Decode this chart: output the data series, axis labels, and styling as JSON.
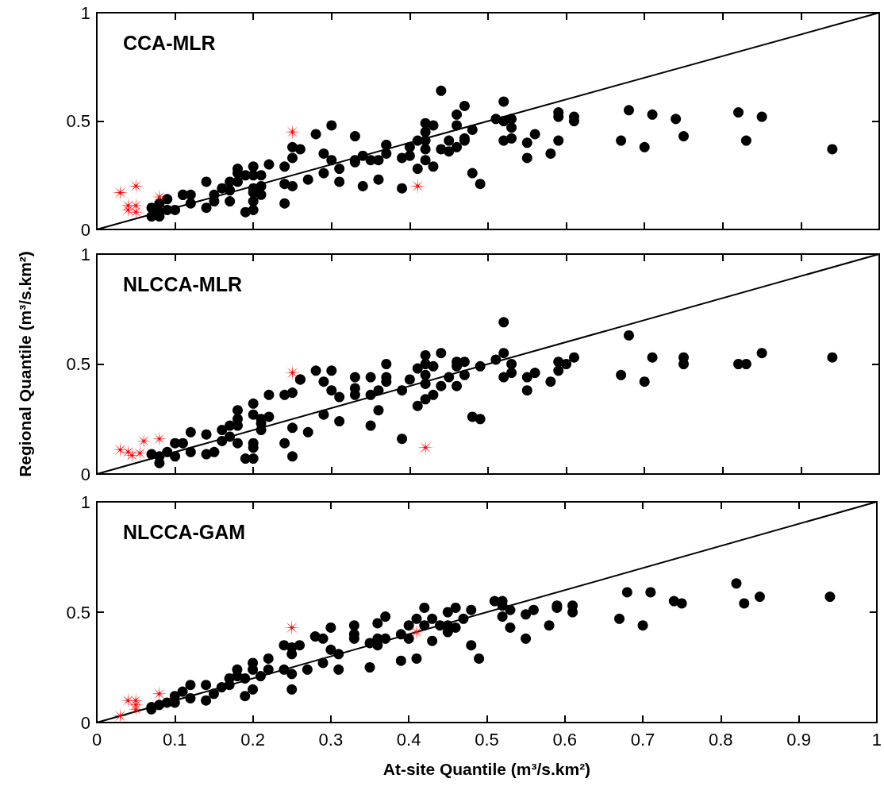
{
  "chart_data": [
    {
      "type": "scatter",
      "title": "CCA-MLR",
      "xlim": [
        0,
        1
      ],
      "ylim": [
        0,
        1
      ],
      "xticks": [
        0,
        0.1,
        0.2,
        0.3,
        0.4,
        0.5,
        0.6,
        0.7,
        0.8,
        0.9,
        1
      ],
      "yticks": [
        0,
        0.5,
        1
      ],
      "tick_labels": "y",
      "series": [
        {
          "type": "scatter",
          "color": "#000000",
          "marker": "circle",
          "x": [
            0.44,
            0.47,
            0.46,
            0.46,
            0.48,
            0.42,
            0.42,
            0.43,
            0.41,
            0.42,
            0.42,
            0.42,
            0.43,
            0.41,
            0.45,
            0.44,
            0.45,
            0.46,
            0.47,
            0.47,
            0.48,
            0.49,
            0.4,
            0.39,
            0.4,
            0.39,
            0.37,
            0.37,
            0.37,
            0.34,
            0.35,
            0.36,
            0.36,
            0.34,
            0.33,
            0.33,
            0.33,
            0.31,
            0.31,
            0.29,
            0.3,
            0.29,
            0.3,
            0.28,
            0.27,
            0.25,
            0.26,
            0.25,
            0.24,
            0.24,
            0.25,
            0.24,
            0.22,
            0.21,
            0.21,
            0.21,
            0.2,
            0.2,
            0.2,
            0.2,
            0.19,
            0.2,
            0.2,
            0.18,
            0.18,
            0.18,
            0.17,
            0.17,
            0.19,
            0.17,
            0.16,
            0.15,
            0.15,
            0.14,
            0.14,
            0.12,
            0.11,
            0.11,
            0.12,
            0.1,
            0.09,
            0.09,
            0.08,
            0.08,
            0.07,
            0.08,
            0.07,
            0.52,
            0.51,
            0.52,
            0.53,
            0.53,
            0.52,
            0.53,
            0.55,
            0.56,
            0.55,
            0.59,
            0.58,
            0.59,
            0.59,
            0.61,
            0.61,
            0.68,
            0.67,
            0.71,
            0.7,
            0.74,
            0.75,
            0.82,
            0.85,
            0.83,
            0.94
          ],
          "values": [
            0.64,
            0.57,
            0.53,
            0.48,
            0.46,
            0.49,
            0.45,
            0.48,
            0.41,
            0.41,
            0.37,
            0.32,
            0.29,
            0.28,
            0.41,
            0.37,
            0.36,
            0.38,
            0.42,
            0.41,
            0.26,
            0.21,
            0.38,
            0.33,
            0.34,
            0.19,
            0.39,
            0.39,
            0.35,
            0.34,
            0.32,
            0.32,
            0.23,
            0.2,
            0.43,
            0.32,
            0.31,
            0.28,
            0.22,
            0.35,
            0.32,
            0.26,
            0.48,
            0.44,
            0.23,
            0.38,
            0.37,
            0.33,
            0.29,
            0.21,
            0.2,
            0.12,
            0.3,
            0.25,
            0.2,
            0.16,
            0.13,
            0.09,
            0.29,
            0.25,
            0.25,
            0.19,
            0.17,
            0.28,
            0.26,
            0.22,
            0.18,
            0.13,
            0.08,
            0.22,
            0.19,
            0.16,
            0.13,
            0.22,
            0.1,
            0.16,
            0.16,
            0.16,
            0.12,
            0.09,
            0.14,
            0.09,
            0.12,
            0.08,
            0.1,
            0.06,
            0.06,
            0.59,
            0.51,
            0.5,
            0.51,
            0.47,
            0.41,
            0.42,
            0.4,
            0.44,
            0.33,
            0.41,
            0.35,
            0.52,
            0.54,
            0.52,
            0.5,
            0.55,
            0.41,
            0.53,
            0.38,
            0.51,
            0.43,
            0.54,
            0.52,
            0.41,
            0.37
          ]
        },
        {
          "type": "scatter",
          "color": "#ff0000",
          "marker": "star",
          "x": [
            0.03,
            0.05,
            0.25,
            0.08,
            0.41,
            0.04,
            0.04,
            0.05,
            0.05
          ],
          "values": [
            0.17,
            0.2,
            0.45,
            0.15,
            0.2,
            0.11,
            0.09,
            0.11,
            0.08
          ]
        },
        {
          "type": "line",
          "color": "#000000",
          "marker": "none",
          "line_style": "solid",
          "x": [
            0,
            1
          ],
          "values": [
            0,
            1
          ]
        }
      ]
    },
    {
      "type": "scatter",
      "title": "NLCCA-MLR",
      "ylabel": "Regional Quantile (m³/s.km²)",
      "xlim": [
        0,
        1
      ],
      "ylim": [
        0,
        1
      ],
      "xticks": [
        0,
        0.1,
        0.2,
        0.3,
        0.4,
        0.5,
        0.6,
        0.7,
        0.8,
        0.9,
        1
      ],
      "yticks": [
        0,
        0.5,
        1
      ],
      "tick_labels": "y",
      "series": [
        {
          "type": "scatter",
          "color": "#000000",
          "marker": "circle",
          "x": [
            0.44,
            0.42,
            0.37,
            0.42,
            0.43,
            0.41,
            0.46,
            0.47,
            0.49,
            0.46,
            0.47,
            0.45,
            0.44,
            0.46,
            0.42,
            0.42,
            0.4,
            0.39,
            0.43,
            0.42,
            0.41,
            0.48,
            0.49,
            0.39,
            0.37,
            0.37,
            0.35,
            0.36,
            0.35,
            0.36,
            0.35,
            0.33,
            0.33,
            0.33,
            0.31,
            0.3,
            0.29,
            0.3,
            0.28,
            0.29,
            0.31,
            0.26,
            0.26,
            0.25,
            0.24,
            0.25,
            0.27,
            0.24,
            0.25,
            0.22,
            0.22,
            0.21,
            0.21,
            0.2,
            0.2,
            0.21,
            0.2,
            0.2,
            0.2,
            0.18,
            0.18,
            0.18,
            0.17,
            0.17,
            0.18,
            0.19,
            0.16,
            0.16,
            0.15,
            0.14,
            0.14,
            0.12,
            0.11,
            0.12,
            0.1,
            0.1,
            0.09,
            0.08,
            0.08,
            0.07,
            0.52,
            0.51,
            0.52,
            0.53,
            0.53,
            0.52,
            0.55,
            0.56,
            0.55,
            0.58,
            0.59,
            0.59,
            0.6,
            0.61,
            0.68,
            0.67,
            0.71,
            0.7,
            0.75,
            0.75,
            0.82,
            0.83,
            0.85,
            0.94
          ],
          "values": [
            0.55,
            0.54,
            0.5,
            0.5,
            0.49,
            0.48,
            0.51,
            0.51,
            0.49,
            0.49,
            0.45,
            0.44,
            0.4,
            0.4,
            0.45,
            0.41,
            0.43,
            0.38,
            0.36,
            0.34,
            0.31,
            0.26,
            0.25,
            0.16,
            0.44,
            0.42,
            0.44,
            0.38,
            0.36,
            0.29,
            0.22,
            0.44,
            0.39,
            0.36,
            0.35,
            0.38,
            0.42,
            0.47,
            0.47,
            0.27,
            0.24,
            0.43,
            0.43,
            0.37,
            0.36,
            0.21,
            0.19,
            0.14,
            0.08,
            0.36,
            0.26,
            0.23,
            0.2,
            0.32,
            0.27,
            0.25,
            0.14,
            0.12,
            0.07,
            0.29,
            0.25,
            0.22,
            0.22,
            0.17,
            0.14,
            0.07,
            0.2,
            0.15,
            0.1,
            0.18,
            0.09,
            0.19,
            0.14,
            0.1,
            0.14,
            0.08,
            0.1,
            0.08,
            0.05,
            0.09,
            0.69,
            0.52,
            0.55,
            0.5,
            0.46,
            0.44,
            0.44,
            0.46,
            0.38,
            0.42,
            0.47,
            0.51,
            0.5,
            0.53,
            0.63,
            0.45,
            0.53,
            0.42,
            0.53,
            0.5,
            0.5,
            0.5,
            0.55,
            0.53
          ]
        },
        {
          "type": "scatter",
          "color": "#ff0000",
          "marker": "star",
          "x": [
            0.25,
            0.08,
            0.06,
            0.03,
            0.04,
            0.045,
            0.055,
            0.42
          ],
          "values": [
            0.46,
            0.16,
            0.15,
            0.11,
            0.1,
            0.085,
            0.095,
            0.12
          ]
        },
        {
          "type": "line",
          "color": "#000000",
          "marker": "none",
          "line_style": "solid",
          "x": [
            0,
            1
          ],
          "values": [
            0,
            1
          ]
        }
      ]
    },
    {
      "type": "scatter",
      "title": "NLCCA-GAM",
      "xlabel": "At-site Quantile (m³/s.km²)",
      "xlim": [
        0,
        1
      ],
      "ylim": [
        0,
        1
      ],
      "xticks": [
        0,
        0.1,
        0.2,
        0.3,
        0.4,
        0.5,
        0.6,
        0.7,
        0.8,
        0.9,
        1
      ],
      "yticks": [
        0,
        0.5,
        1
      ],
      "series": [
        {
          "type": "scatter",
          "color": "#000000",
          "marker": "circle",
          "x": [
            0.42,
            0.46,
            0.45,
            0.48,
            0.41,
            0.43,
            0.37,
            0.36,
            0.4,
            0.42,
            0.47,
            0.44,
            0.45,
            0.46,
            0.45,
            0.39,
            0.4,
            0.43,
            0.48,
            0.49,
            0.39,
            0.41,
            0.33,
            0.33,
            0.33,
            0.35,
            0.36,
            0.36,
            0.37,
            0.35,
            0.3,
            0.29,
            0.3,
            0.31,
            0.29,
            0.31,
            0.28,
            0.24,
            0.25,
            0.26,
            0.25,
            0.24,
            0.27,
            0.25,
            0.25,
            0.22,
            0.22,
            0.21,
            0.2,
            0.2,
            0.19,
            0.2,
            0.18,
            0.18,
            0.17,
            0.19,
            0.17,
            0.16,
            0.15,
            0.14,
            0.14,
            0.12,
            0.11,
            0.12,
            0.1,
            0.1,
            0.09,
            0.08,
            0.07,
            0.07,
            0.51,
            0.52,
            0.52,
            0.53,
            0.52,
            0.53,
            0.55,
            0.56,
            0.55,
            0.59,
            0.59,
            0.58,
            0.61,
            0.61,
            0.68,
            0.67,
            0.71,
            0.7,
            0.74,
            0.75,
            0.82,
            0.83,
            0.85,
            0.94
          ],
          "values": [
            0.52,
            0.52,
            0.5,
            0.51,
            0.47,
            0.47,
            0.48,
            0.45,
            0.44,
            0.44,
            0.47,
            0.44,
            0.44,
            0.43,
            0.41,
            0.4,
            0.38,
            0.37,
            0.35,
            0.29,
            0.28,
            0.29,
            0.44,
            0.4,
            0.38,
            0.36,
            0.38,
            0.35,
            0.38,
            0.25,
            0.43,
            0.38,
            0.33,
            0.31,
            0.27,
            0.24,
            0.39,
            0.35,
            0.34,
            0.35,
            0.31,
            0.24,
            0.24,
            0.22,
            0.15,
            0.29,
            0.24,
            0.21,
            0.27,
            0.24,
            0.2,
            0.15,
            0.24,
            0.21,
            0.17,
            0.12,
            0.2,
            0.16,
            0.13,
            0.17,
            0.1,
            0.17,
            0.14,
            0.11,
            0.12,
            0.09,
            0.09,
            0.08,
            0.07,
            0.06,
            0.55,
            0.55,
            0.53,
            0.51,
            0.48,
            0.43,
            0.49,
            0.51,
            0.38,
            0.53,
            0.52,
            0.44,
            0.53,
            0.5,
            0.59,
            0.47,
            0.59,
            0.44,
            0.55,
            0.54,
            0.63,
            0.54,
            0.57,
            0.57
          ]
        },
        {
          "type": "scatter",
          "color": "#ff0000",
          "marker": "star",
          "x": [
            0.25,
            0.41,
            0.08,
            0.03,
            0.04,
            0.05,
            0.05,
            0.05
          ],
          "values": [
            0.43,
            0.41,
            0.13,
            0.03,
            0.1,
            0.1,
            0.08,
            0.06
          ]
        },
        {
          "type": "line",
          "color": "#000000",
          "marker": "none",
          "line_style": "solid",
          "x": [
            0,
            1
          ],
          "values": [
            0,
            1
          ]
        }
      ]
    }
  ]
}
